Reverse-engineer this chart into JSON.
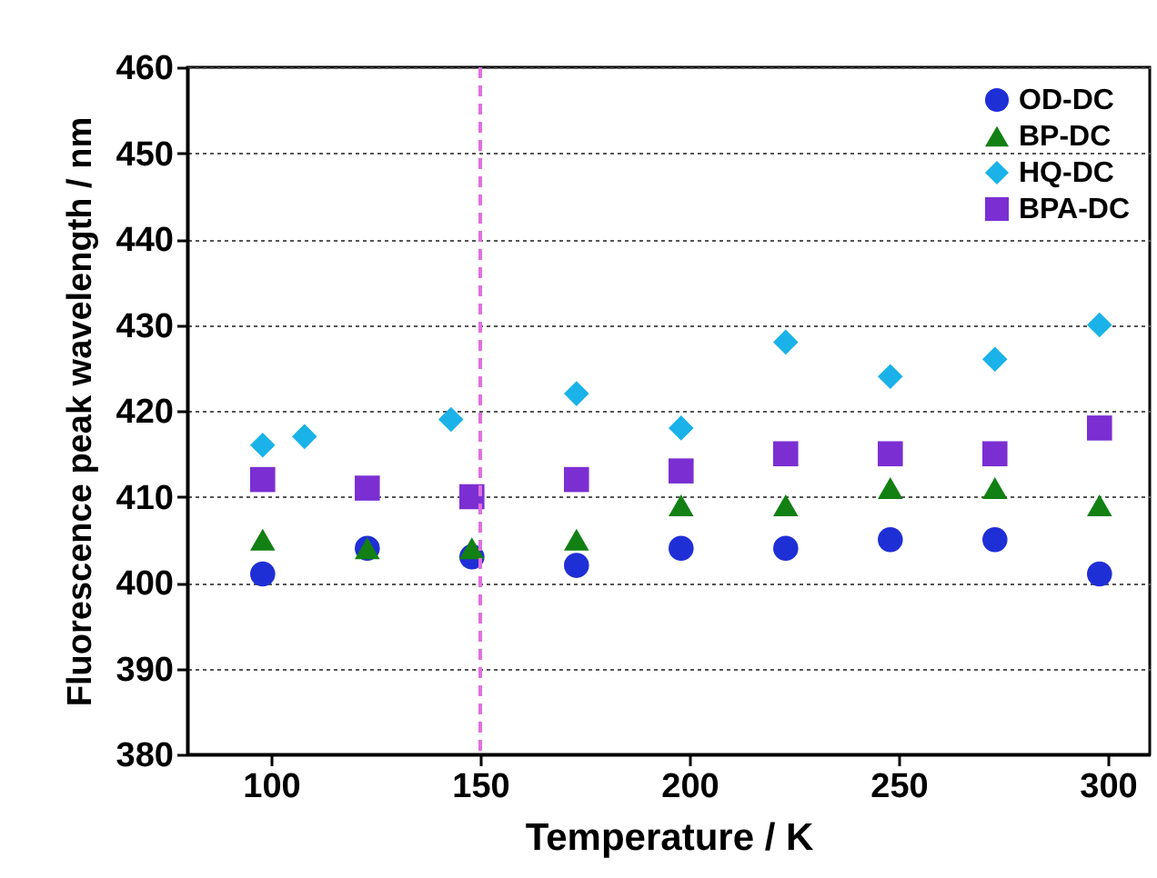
{
  "chart_data": {
    "type": "scatter",
    "xlabel": "Temperature / K",
    "ylabel": "Fluorescence peak wavelength / nm",
    "xlim": [
      80,
      310
    ],
    "xticks": [
      100,
      150,
      200,
      250,
      300
    ],
    "ylim": [
      380,
      460
    ],
    "yticks": [
      380,
      390,
      400,
      410,
      420,
      430,
      440,
      450,
      460
    ],
    "grid": "y",
    "legend": "top right",
    "series": [
      {
        "name": "OD-DC",
        "color": "#1f2fd6",
        "marker": "circle",
        "x": [
          98,
          123,
          148,
          173,
          198,
          223,
          248,
          273,
          298
        ],
        "values": [
          401,
          404,
          403,
          402,
          404,
          404,
          405,
          405,
          401
        ]
      },
      {
        "name": "BP-DC",
        "color": "#128012",
        "marker": "triangle",
        "x": [
          98,
          123,
          148,
          173,
          198,
          223,
          248,
          273,
          298
        ],
        "values": [
          405,
          404,
          404,
          405,
          409,
          409,
          411,
          411,
          409
        ]
      },
      {
        "name": "HQ-DC",
        "color": "#1ab2e8",
        "marker": "diamond",
        "x": [
          98,
          108,
          143,
          173,
          198,
          223,
          248,
          273,
          298
        ],
        "values": [
          416,
          417,
          419,
          422,
          418,
          428,
          424,
          426,
          430
        ]
      },
      {
        "name": "BPA-DC",
        "color": "#7b2fd2",
        "marker": "square",
        "x": [
          98,
          123,
          148,
          173,
          198,
          223,
          248,
          273,
          298
        ],
        "values": [
          412,
          411,
          410,
          412,
          413,
          415,
          415,
          415,
          418
        ]
      }
    ],
    "ref_lines": [
      {
        "axis": "x",
        "value": 150,
        "color": "#e070e0",
        "line_style": "dashed"
      }
    ]
  }
}
